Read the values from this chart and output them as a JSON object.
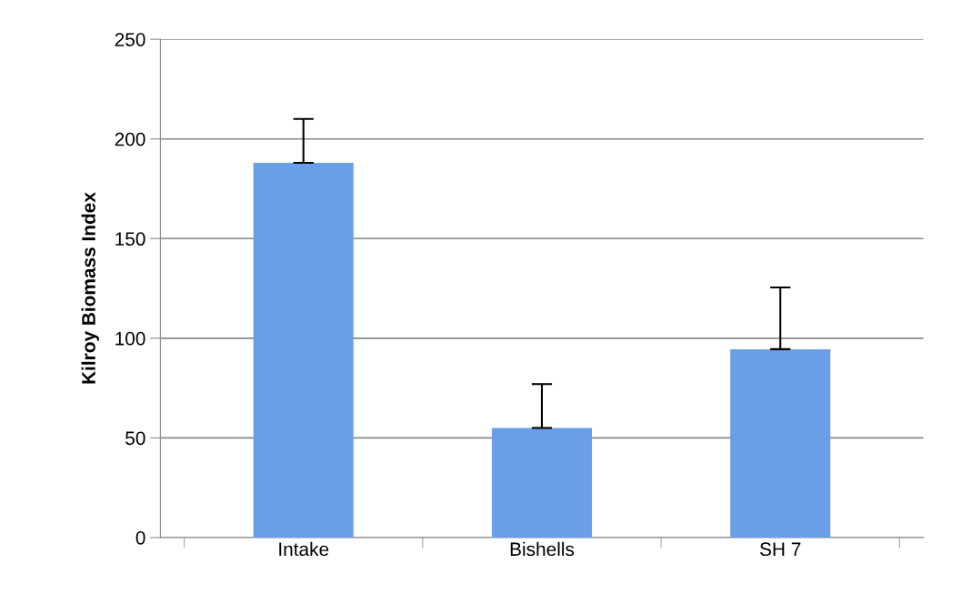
{
  "chart_data": {
    "type": "bar",
    "ylabel": "Kilroy Biomass Index",
    "categories": [
      "Intake",
      "Bishells",
      "SH 7"
    ],
    "values": [
      188,
      55,
      94.5
    ],
    "errors": [
      [
        188,
        210
      ],
      [
        55,
        77
      ],
      [
        94.5,
        125.5
      ]
    ],
    "color": "#6a9fe8",
    "ylim": [
      0,
      250
    ],
    "yticks": [
      0,
      50,
      100,
      150,
      200,
      250
    ],
    "grid": "y"
  }
}
